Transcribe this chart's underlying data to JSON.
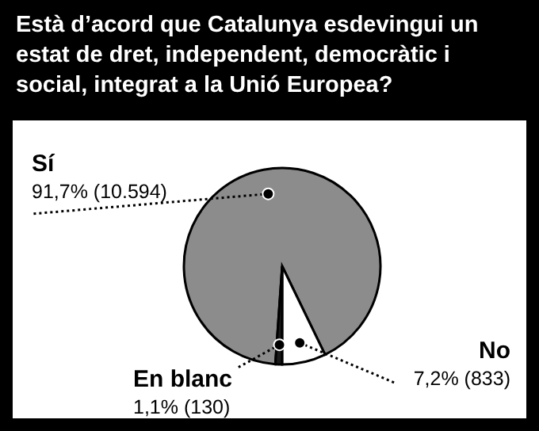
{
  "chart_data": {
    "type": "pie",
    "title": "Està d’acord que Catalunya esdevingui un estat de dret, independent, democràtic i social, integrat a la Unió Europea?",
    "categories": [
      "Sí",
      "No",
      "En blanc"
    ],
    "values": [
      91.7,
      7.2,
      1.1
    ],
    "value_labels": [
      "91,7% (10.594)",
      "7,2% (833)",
      "1,1% (130)"
    ],
    "colors": [
      "#8c8c8c",
      "#ffffff",
      "#1a1a1a"
    ]
  }
}
